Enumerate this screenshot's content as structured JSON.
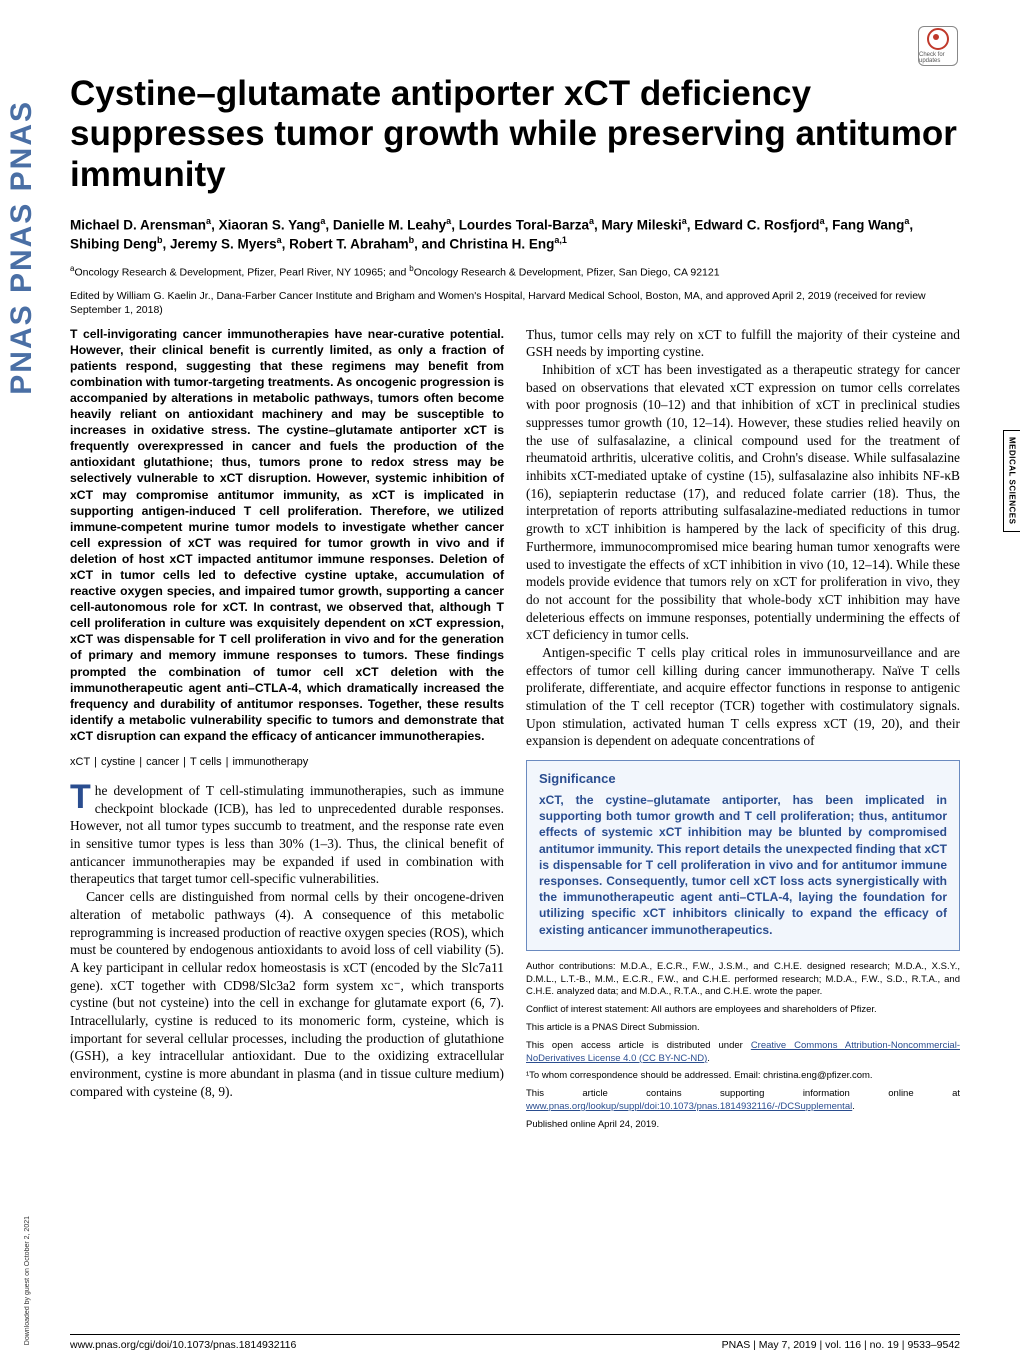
{
  "journal_strip": "PNAS  PNAS  PNAS",
  "check_updates_label": "Check for updates",
  "title": "Cystine–glutamate antiporter xCT deficiency suppresses tumor growth while preserving antitumor immunity",
  "authors_html": "Michael D. Arensman<sup>a</sup>, Xiaoran S. Yang<sup>a</sup>, Danielle M. Leahy<sup>a</sup>, Lourdes Toral-Barza<sup>a</sup>, Mary Mileski<sup>a</sup>, Edward C. Rosfjord<sup>a</sup>, Fang Wang<sup>a</sup>, Shibing Deng<sup>b</sup>, Jeremy S. Myers<sup>a</sup>, Robert T. Abraham<sup>b</sup>, and Christina H. Eng<sup>a,1</sup>",
  "affiliations_html": "<sup>a</sup>Oncology Research & Development, Pfizer, Pearl River, NY 10965; and <sup>b</sup>Oncology Research & Development, Pfizer, San Diego, CA 92121",
  "edited_by": "Edited by William G. Kaelin Jr., Dana-Farber Cancer Institute and Brigham and Women's Hospital, Harvard Medical School, Boston, MA, and approved April 2, 2019 (received for review September 1, 2018)",
  "abstract": "T cell-invigorating cancer immunotherapies have near-curative potential. However, their clinical benefit is currently limited, as only a fraction of patients respond, suggesting that these regimens may benefit from combination with tumor-targeting treatments. As oncogenic progression is accompanied by alterations in metabolic pathways, tumors often become heavily reliant on antioxidant machinery and may be susceptible to increases in oxidative stress. The cystine–glutamate antiporter xCT is frequently overexpressed in cancer and fuels the production of the antioxidant glutathione; thus, tumors prone to redox stress may be selectively vulnerable to xCT disruption. However, systemic inhibition of xCT may compromise antitumor immunity, as xCT is implicated in supporting antigen-induced T cell proliferation. Therefore, we utilized immune-competent murine tumor models to investigate whether cancer cell expression of xCT was required for tumor growth in vivo and if deletion of host xCT impacted antitumor immune responses. Deletion of xCT in tumor cells led to defective cystine uptake, accumulation of reactive oxygen species, and impaired tumor growth, supporting a cancer cell-autonomous role for xCT. In contrast, we observed that, although T cell proliferation in culture was exquisitely dependent on xCT expression, xCT was dispensable for T cell proliferation in vivo and for the generation of primary and memory immune responses to tumors. These findings prompted the combination of tumor cell xCT deletion with the immunotherapeutic agent anti–CTLA-4, which dramatically increased the frequency and durability of antitumor responses. Together, these results identify a metabolic vulnerability specific to tumors and demonstrate that xCT disruption can expand the efficacy of anticancer immunotherapies.",
  "keywords": [
    "xCT",
    "cystine",
    "cancer",
    "T cells",
    "immunotherapy"
  ],
  "left_body_p1": "The development of T cell-stimulating immunotherapies, such as immune checkpoint blockade (ICB), has led to unprecedented durable responses. However, not all tumor types succumb to treatment, and the response rate even in sensitive tumor types is less than 30% (1–3). Thus, the clinical benefit of anticancer immunotherapies may be expanded if used in combination with therapeutics that target tumor cell-specific vulnerabilities.",
  "left_body_p2": "Cancer cells are distinguished from normal cells by their oncogene-driven alteration of metabolic pathways (4). A consequence of this metabolic reprogramming is increased production of reactive oxygen species (ROS), which must be countered by endogenous antioxidants to avoid loss of cell viability (5). A key participant in cellular redox homeostasis is xCT (encoded by the Slc7a11 gene). xCT together with CD98/Slc3a2 form system xc⁻, which transports cystine (but not cysteine) into the cell in exchange for glutamate export (6, 7). Intracellularly, cystine is reduced to its monomeric form, cysteine, which is important for several cellular processes, including the production of glutathione (GSH), a key intracellular antioxidant. Due to the oxidizing extracellular environment, cystine is more abundant in plasma (and in tissue culture medium) compared with cysteine (8, 9).",
  "right_body_p1": "Thus, tumor cells may rely on xCT to fulfill the majority of their cysteine and GSH needs by importing cystine.",
  "right_body_p2": "Inhibition of xCT has been investigated as a therapeutic strategy for cancer based on observations that elevated xCT expression on tumor cells correlates with poor prognosis (10–12) and that inhibition of xCT in preclinical studies suppresses tumor growth (10, 12–14). However, these studies relied heavily on the use of sulfasalazine, a clinical compound used for the treatment of rheumatoid arthritis, ulcerative colitis, and Crohn's disease. While sulfasalazine inhibits xCT-mediated uptake of cystine (15), sulfasalazine also inhibits NF-κB (16), sepiapterin reductase (17), and reduced folate carrier (18). Thus, the interpretation of reports attributing sulfasalazine-mediated reductions in tumor growth to xCT inhibition is hampered by the lack of specificity of this drug. Furthermore, immunocompromised mice bearing human tumor xenografts were used to investigate the effects of xCT inhibition in vivo (10, 12–14). While these models provide evidence that tumors rely on xCT for proliferation in vivo, they do not account for the possibility that whole-body xCT inhibition may have deleterious effects on immune responses, potentially undermining the effects of xCT deficiency in tumor cells.",
  "right_body_p3": "Antigen-specific T cells play critical roles in immunosurveillance and are effectors of tumor cell killing during cancer immunotherapy. Naïve T cells proliferate, differentiate, and acquire effector functions in response to antigenic stimulation of the T cell receptor (TCR) together with costimulatory signals. Upon stimulation, activated human T cells express xCT (19, 20), and their expansion is dependent on adequate concentrations of",
  "significance": {
    "heading": "Significance",
    "text": "xCT, the cystine–glutamate antiporter, has been implicated in supporting both tumor growth and T cell proliferation; thus, antitumor effects of systemic xCT inhibition may be blunted by compromised antitumor immunity. This report details the unexpected finding that xCT is dispensable for T cell proliferation in vivo and for antitumor immune responses. Consequently, tumor cell xCT loss acts synergistically with the immunotherapeutic agent anti–CTLA-4, laying the foundation for utilizing specific xCT inhibitors clinically to expand the efficacy of existing anticancer immunotherapeutics."
  },
  "notes": {
    "author_contrib": "Author contributions: M.D.A., E.C.R., F.W., J.S.M., and C.H.E. designed research; M.D.A., X.S.Y., D.M.L., L.T.-B., M.M., E.C.R., F.W., and C.H.E. performed research; M.D.A., F.W., S.D., R.T.A., and C.H.E. analyzed data; and M.D.A., R.T.A., and C.H.E. wrote the paper.",
    "coi": "Conflict of interest statement: All authors are employees and shareholders of Pfizer.",
    "direct": "This article is a PNAS Direct Submission.",
    "license_prefix": "This open access article is distributed under ",
    "license_link_text": "Creative Commons Attribution-Noncommercial-NoDerivatives License 4.0 (CC BY-NC-ND)",
    "license_suffix": ".",
    "corr": "¹To whom correspondence should be addressed. Email: christina.eng@pfizer.com.",
    "si_prefix": "This article contains supporting information online at ",
    "si_link_text": "www.pnas.org/lookup/suppl/doi:10.1073/pnas.1814932116/-/DCSupplemental",
    "si_suffix": ".",
    "pub": "Published online April 24, 2019."
  },
  "side_tab": "MEDICAL SCIENCES",
  "footer": {
    "doi": "www.pnas.org/cgi/doi/10.1073/pnas.1814932116",
    "right": "PNAS | May 7, 2019 | vol. 116 | no. 19 | 9533–9542"
  },
  "download_note": "Downloaded by guest on October 2, 2021",
  "colors": {
    "pnas_blue": "#2a4d8f",
    "sig_bg": "#f2f6fc",
    "sig_border": "#6a8abf"
  }
}
